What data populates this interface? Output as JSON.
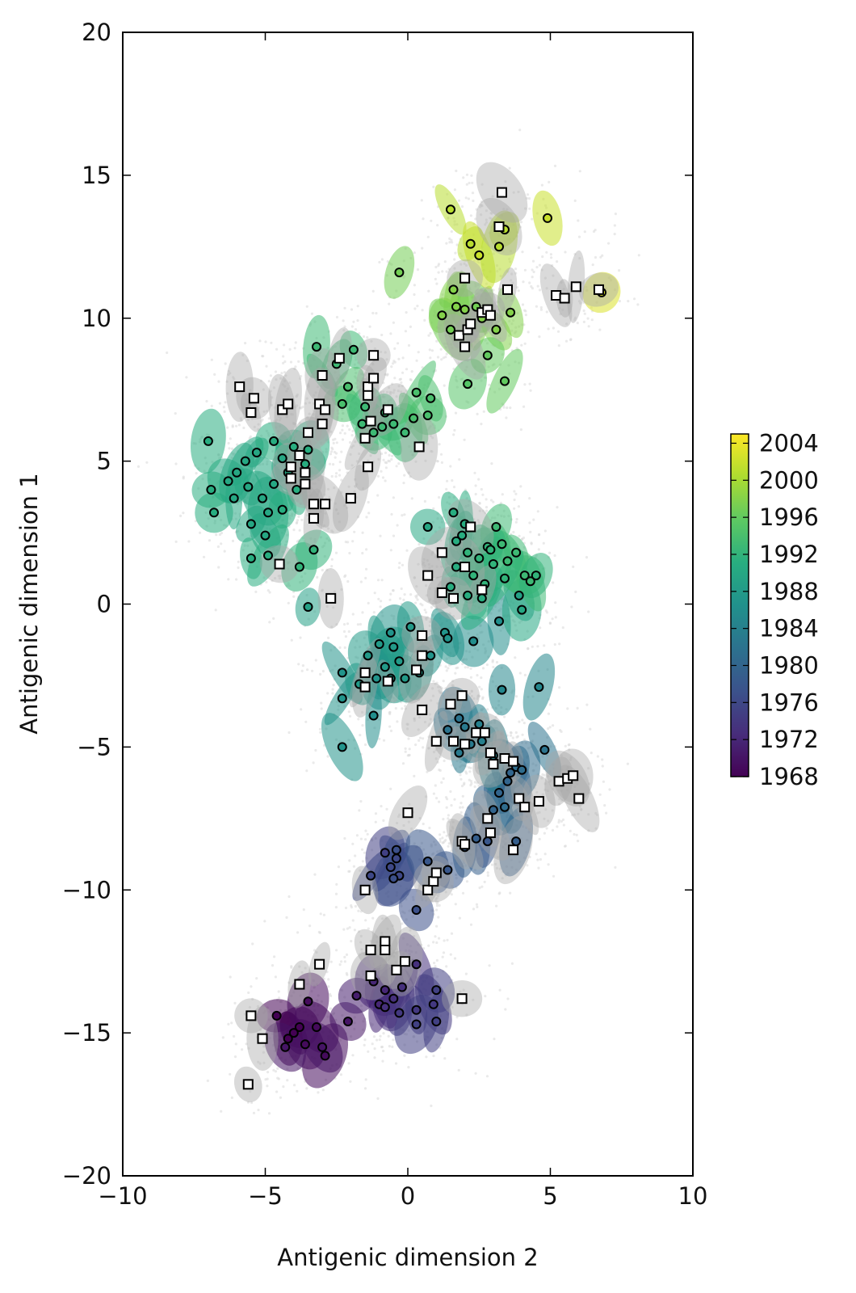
{
  "chart_data": {
    "type": "scatter",
    "xlabel": "Antigenic dimension 2",
    "ylabel": "Antigenic dimension 1",
    "xlim": [
      -10,
      10
    ],
    "ylim": [
      -20,
      20
    ],
    "x_ticks": [
      -10,
      -5,
      0,
      5,
      10
    ],
    "y_ticks": [
      -20,
      -15,
      -10,
      -5,
      0,
      5,
      10,
      15,
      20
    ],
    "x_tick_labels": [
      "−10",
      "−5",
      "0",
      "5",
      "10"
    ],
    "y_tick_labels": [
      "−20",
      "−15",
      "−10",
      "−5",
      "0",
      "5",
      "10",
      "15",
      "20"
    ],
    "grid": false,
    "colormap": "viridis",
    "colorbar": {
      "min": 1968,
      "max": 2005,
      "ticks": [
        1968,
        1972,
        1976,
        1980,
        1984,
        1988,
        1992,
        1996,
        2000,
        2004
      ],
      "labels": [
        "1968",
        "1972",
        "1976",
        "1980",
        "1984",
        "1988",
        "1992",
        "1996",
        "2000",
        "2004"
      ]
    },
    "colors": {
      "background_samples": "#d9d9d9",
      "grey_ellipses": "#a8a8a8",
      "point_stroke": "#000000",
      "serum_fill": "#ffffff"
    },
    "legend_items": [],
    "viruses": [
      {
        "x": -4.0,
        "y": -15.0,
        "year": 1968
      },
      {
        "x": -3.8,
        "y": -14.8,
        "year": 1968
      },
      {
        "x": -4.2,
        "y": -15.2,
        "year": 1968
      },
      {
        "x": -4.6,
        "y": -14.4,
        "year": 1968
      },
      {
        "x": -3.6,
        "y": -15.4,
        "year": 1969
      },
      {
        "x": -3.2,
        "y": -14.8,
        "year": 1969
      },
      {
        "x": -2.9,
        "y": -15.8,
        "year": 1969
      },
      {
        "x": -3.5,
        "y": -13.9,
        "year": 1969
      },
      {
        "x": -2.1,
        "y": -14.6,
        "year": 1970
      },
      {
        "x": -4.3,
        "y": -15.5,
        "year": 1970
      },
      {
        "x": -3.0,
        "y": -15.5,
        "year": 1970
      },
      {
        "x": -1.8,
        "y": -13.7,
        "year": 1971
      },
      {
        "x": -1.2,
        "y": -13.2,
        "year": 1972
      },
      {
        "x": -0.8,
        "y": -13.5,
        "year": 1972
      },
      {
        "x": -0.5,
        "y": -13.8,
        "year": 1973
      },
      {
        "x": -0.2,
        "y": -13.4,
        "year": 1973
      },
      {
        "x": 0.3,
        "y": -12.6,
        "year": 1973
      },
      {
        "x": -1.0,
        "y": -14.0,
        "year": 1972
      },
      {
        "x": -0.3,
        "y": -14.3,
        "year": 1974
      },
      {
        "x": 0.3,
        "y": -14.2,
        "year": 1974
      },
      {
        "x": 0.9,
        "y": -14.0,
        "year": 1974
      },
      {
        "x": 1.0,
        "y": -14.6,
        "year": 1975
      },
      {
        "x": 0.3,
        "y": -14.7,
        "year": 1975
      },
      {
        "x": -0.8,
        "y": -14.1,
        "year": 1973
      },
      {
        "x": 1.0,
        "y": -13.5,
        "year": 1975
      },
      {
        "x": -0.8,
        "y": -8.7,
        "year": 1975
      },
      {
        "x": -0.6,
        "y": -9.2,
        "year": 1976
      },
      {
        "x": -0.4,
        "y": -8.9,
        "year": 1976
      },
      {
        "x": -0.3,
        "y": -9.5,
        "year": 1976
      },
      {
        "x": -0.5,
        "y": -9.6,
        "year": 1977
      },
      {
        "x": -0.4,
        "y": -8.6,
        "year": 1977
      },
      {
        "x": -1.3,
        "y": -9.5,
        "year": 1976
      },
      {
        "x": 0.3,
        "y": -10.7,
        "year": 1977
      },
      {
        "x": 0.7,
        "y": -9.0,
        "year": 1978
      },
      {
        "x": 1.4,
        "y": -9.3,
        "year": 1978
      },
      {
        "x": 2.0,
        "y": -8.5,
        "year": 1979
      },
      {
        "x": 2.4,
        "y": -8.2,
        "year": 1979
      },
      {
        "x": 3.8,
        "y": -8.3,
        "year": 1979
      },
      {
        "x": 2.8,
        "y": -8.3,
        "year": 1978
      },
      {
        "x": 3.0,
        "y": -7.2,
        "year": 1980
      },
      {
        "x": 3.2,
        "y": -6.6,
        "year": 1980
      },
      {
        "x": 3.5,
        "y": -6.2,
        "year": 1980
      },
      {
        "x": 3.8,
        "y": -5.7,
        "year": 1981
      },
      {
        "x": 4.0,
        "y": -5.8,
        "year": 1981
      },
      {
        "x": 4.8,
        "y": -5.1,
        "year": 1982
      },
      {
        "x": 3.4,
        "y": -7.1,
        "year": 1981
      },
      {
        "x": 3.6,
        "y": -5.9,
        "year": 1980
      },
      {
        "x": 1.8,
        "y": -4.0,
        "year": 1982
      },
      {
        "x": 1.4,
        "y": -4.4,
        "year": 1982
      },
      {
        "x": 2.0,
        "y": -4.3,
        "year": 1983
      },
      {
        "x": 2.2,
        "y": -4.9,
        "year": 1983
      },
      {
        "x": 1.8,
        "y": -5.2,
        "year": 1983
      },
      {
        "x": 2.6,
        "y": -4.8,
        "year": 1984
      },
      {
        "x": 2.5,
        "y": -4.2,
        "year": 1984
      },
      {
        "x": 3.3,
        "y": -3.0,
        "year": 1985
      },
      {
        "x": 4.6,
        "y": -2.9,
        "year": 1985
      },
      {
        "x": 3.0,
        "y": -5.3,
        "year": 1984
      },
      {
        "x": 2.3,
        "y": -1.3,
        "year": 1986
      },
      {
        "x": 3.2,
        "y": -0.6,
        "year": 1986
      },
      {
        "x": 1.3,
        "y": -1.0,
        "year": 1987
      },
      {
        "x": 1.4,
        "y": -1.2,
        "year": 1987
      },
      {
        "x": -0.6,
        "y": -1.0,
        "year": 1987
      },
      {
        "x": -0.5,
        "y": -1.5,
        "year": 1988
      },
      {
        "x": -0.3,
        "y": -2.0,
        "year": 1988
      },
      {
        "x": -1.0,
        "y": -1.4,
        "year": 1988
      },
      {
        "x": -1.4,
        "y": -1.8,
        "year": 1988
      },
      {
        "x": -0.8,
        "y": -2.2,
        "year": 1988
      },
      {
        "x": -0.6,
        "y": -2.6,
        "year": 1988
      },
      {
        "x": -0.1,
        "y": -2.6,
        "year": 1988
      },
      {
        "x": 0.4,
        "y": -2.4,
        "year": 1988
      },
      {
        "x": 0.8,
        "y": -1.8,
        "year": 1987
      },
      {
        "x": -1.1,
        "y": -2.6,
        "year": 1987
      },
      {
        "x": -2.3,
        "y": -2.4,
        "year": 1987
      },
      {
        "x": -2.3,
        "y": -3.3,
        "year": 1987
      },
      {
        "x": -1.2,
        "y": -3.9,
        "year": 1986
      },
      {
        "x": -2.3,
        "y": -5.0,
        "year": 1987
      },
      {
        "x": -1.7,
        "y": -2.8,
        "year": 1988
      },
      {
        "x": 0.1,
        "y": -0.8,
        "year": 1988
      },
      {
        "x": 3.9,
        "y": 0.3,
        "year": 1989
      },
      {
        "x": 4.0,
        "y": -0.2,
        "year": 1990
      },
      {
        "x": -3.5,
        "y": -0.1,
        "year": 1989
      },
      {
        "x": 0.7,
        "y": 2.7,
        "year": 1990
      },
      {
        "x": 1.6,
        "y": 3.2,
        "year": 1991
      },
      {
        "x": 2.0,
        "y": 2.8,
        "year": 1991
      },
      {
        "x": 1.7,
        "y": 2.2,
        "year": 1991
      },
      {
        "x": 2.1,
        "y": 1.8,
        "year": 1992
      },
      {
        "x": 2.5,
        "y": 1.6,
        "year": 1992
      },
      {
        "x": 2.8,
        "y": 2.0,
        "year": 1992
      },
      {
        "x": 3.1,
        "y": 2.7,
        "year": 1993
      },
      {
        "x": 3.3,
        "y": 2.1,
        "year": 1993
      },
      {
        "x": 2.3,
        "y": 1.0,
        "year": 1992
      },
      {
        "x": 2.7,
        "y": 0.7,
        "year": 1992
      },
      {
        "x": 3.0,
        "y": 1.4,
        "year": 1992
      },
      {
        "x": 1.7,
        "y": 1.3,
        "year": 1991
      },
      {
        "x": 1.5,
        "y": 0.6,
        "year": 1991
      },
      {
        "x": 3.5,
        "y": 1.5,
        "year": 1993
      },
      {
        "x": 3.8,
        "y": 1.8,
        "year": 1993
      },
      {
        "x": 4.1,
        "y": 1.0,
        "year": 1993
      },
      {
        "x": 4.3,
        "y": 0.8,
        "year": 1993
      },
      {
        "x": 4.5,
        "y": 1.0,
        "year": 1992
      },
      {
        "x": 3.4,
        "y": 0.9,
        "year": 1992
      },
      {
        "x": 2.1,
        "y": 0.3,
        "year": 1991
      },
      {
        "x": 2.6,
        "y": 0.2,
        "year": 1991
      },
      {
        "x": 2.9,
        "y": 1.9,
        "year": 1992
      },
      {
        "x": 1.9,
        "y": 2.4,
        "year": 1991
      },
      {
        "x": -4.4,
        "y": 5.1,
        "year": 1990
      },
      {
        "x": -4.0,
        "y": 5.5,
        "year": 1991
      },
      {
        "x": -3.6,
        "y": 4.9,
        "year": 1991
      },
      {
        "x": -4.2,
        "y": 4.6,
        "year": 1990
      },
      {
        "x": -4.7,
        "y": 4.2,
        "year": 1990
      },
      {
        "x": -5.1,
        "y": 3.7,
        "year": 1990
      },
      {
        "x": -5.6,
        "y": 4.1,
        "year": 1990
      },
      {
        "x": -4.9,
        "y": 3.2,
        "year": 1990
      },
      {
        "x": -4.4,
        "y": 3.3,
        "year": 1991
      },
      {
        "x": -3.9,
        "y": 4.0,
        "year": 1991
      },
      {
        "x": -3.5,
        "y": 5.4,
        "year": 1991
      },
      {
        "x": -5.3,
        "y": 5.3,
        "year": 1990
      },
      {
        "x": -5.7,
        "y": 5.0,
        "year": 1990
      },
      {
        "x": -6.3,
        "y": 4.3,
        "year": 1990
      },
      {
        "x": -6.9,
        "y": 4.0,
        "year": 1991
      },
      {
        "x": -7.0,
        "y": 5.7,
        "year": 1991
      },
      {
        "x": -6.8,
        "y": 3.2,
        "year": 1991
      },
      {
        "x": -5.5,
        "y": 2.8,
        "year": 1990
      },
      {
        "x": -5.0,
        "y": 2.4,
        "year": 1990
      },
      {
        "x": -5.5,
        "y": 1.6,
        "year": 1991
      },
      {
        "x": -4.9,
        "y": 1.7,
        "year": 1991
      },
      {
        "x": -3.3,
        "y": 1.9,
        "year": 1992
      },
      {
        "x": -3.8,
        "y": 1.3,
        "year": 1992
      },
      {
        "x": -6.0,
        "y": 4.6,
        "year": 1990
      },
      {
        "x": -6.1,
        "y": 3.7,
        "year": 1990
      },
      {
        "x": -4.7,
        "y": 5.7,
        "year": 1991
      },
      {
        "x": -3.2,
        "y": 9.0,
        "year": 1993
      },
      {
        "x": -2.5,
        "y": 8.4,
        "year": 1993
      },
      {
        "x": -1.9,
        "y": 8.9,
        "year": 1993
      },
      {
        "x": -2.1,
        "y": 7.6,
        "year": 1994
      },
      {
        "x": -2.3,
        "y": 7.0,
        "year": 1994
      },
      {
        "x": -1.6,
        "y": 6.3,
        "year": 1993
      },
      {
        "x": -1.5,
        "y": 6.9,
        "year": 1993
      },
      {
        "x": -0.8,
        "y": 6.7,
        "year": 1993
      },
      {
        "x": -0.5,
        "y": 6.3,
        "year": 1993
      },
      {
        "x": -0.1,
        "y": 6.0,
        "year": 1993
      },
      {
        "x": 0.2,
        "y": 6.5,
        "year": 1994
      },
      {
        "x": 0.3,
        "y": 7.4,
        "year": 1994
      },
      {
        "x": 0.8,
        "y": 7.2,
        "year": 1994
      },
      {
        "x": 0.7,
        "y": 6.6,
        "year": 1994
      },
      {
        "x": -1.2,
        "y": 6.0,
        "year": 1993
      },
      {
        "x": -0.9,
        "y": 6.2,
        "year": 1993
      },
      {
        "x": -3.0,
        "y": 8.0,
        "year": 1993
      },
      {
        "x": -0.3,
        "y": 11.6,
        "year": 1997
      },
      {
        "x": 1.6,
        "y": 11.0,
        "year": 1998
      },
      {
        "x": 1.2,
        "y": 10.1,
        "year": 1998
      },
      {
        "x": 1.7,
        "y": 10.4,
        "year": 1998
      },
      {
        "x": 2.0,
        "y": 10.3,
        "year": 1998
      },
      {
        "x": 2.6,
        "y": 10.0,
        "year": 1998
      },
      {
        "x": 3.1,
        "y": 9.6,
        "year": 1998
      },
      {
        "x": 3.6,
        "y": 10.2,
        "year": 1998
      },
      {
        "x": 2.4,
        "y": 10.4,
        "year": 1997
      },
      {
        "x": 1.5,
        "y": 9.6,
        "year": 1997
      },
      {
        "x": 2.8,
        "y": 8.7,
        "year": 1996
      },
      {
        "x": 3.4,
        "y": 7.8,
        "year": 1996
      },
      {
        "x": 2.1,
        "y": 7.7,
        "year": 1995
      },
      {
        "x": 1.5,
        "y": 13.8,
        "year": 2001
      },
      {
        "x": 2.2,
        "y": 12.6,
        "year": 2001
      },
      {
        "x": 2.5,
        "y": 12.2,
        "year": 2002
      },
      {
        "x": 3.2,
        "y": 12.5,
        "year": 2001
      },
      {
        "x": 3.4,
        "y": 13.1,
        "year": 2001
      },
      {
        "x": 4.9,
        "y": 13.5,
        "year": 2002
      },
      {
        "x": 6.8,
        "y": 10.9,
        "year": 2003
      }
    ],
    "sera": [
      {
        "x": -5.6,
        "y": -16.8
      },
      {
        "x": -5.5,
        "y": -14.4
      },
      {
        "x": -5.1,
        "y": -15.2
      },
      {
        "x": -3.8,
        "y": -13.3
      },
      {
        "x": -3.1,
        "y": -12.6
      },
      {
        "x": -1.3,
        "y": -13.0
      },
      {
        "x": -1.3,
        "y": -12.1
      },
      {
        "x": -0.8,
        "y": -11.8
      },
      {
        "x": -0.8,
        "y": -12.1
      },
      {
        "x": -0.4,
        "y": -12.8
      },
      {
        "x": -0.1,
        "y": -12.5
      },
      {
        "x": 1.9,
        "y": -13.8
      },
      {
        "x": -1.5,
        "y": -10.0
      },
      {
        "x": 0.7,
        "y": -10.0
      },
      {
        "x": 0.9,
        "y": -9.7
      },
      {
        "x": 1.0,
        "y": -9.4
      },
      {
        "x": 0.0,
        "y": -7.3
      },
      {
        "x": 1.9,
        "y": -8.3
      },
      {
        "x": 2.0,
        "y": -8.4
      },
      {
        "x": 2.8,
        "y": -7.5
      },
      {
        "x": 2.9,
        "y": -8.0
      },
      {
        "x": 3.7,
        "y": -8.6
      },
      {
        "x": 3.9,
        "y": -6.8
      },
      {
        "x": 4.1,
        "y": -7.1
      },
      {
        "x": 4.6,
        "y": -6.9
      },
      {
        "x": 5.3,
        "y": -6.2
      },
      {
        "x": 5.6,
        "y": -6.1
      },
      {
        "x": 5.8,
        "y": -6.0
      },
      {
        "x": 6.0,
        "y": -6.8
      },
      {
        "x": 3.4,
        "y": -5.4
      },
      {
        "x": 3.7,
        "y": -5.5
      },
      {
        "x": 2.9,
        "y": -5.2
      },
      {
        "x": 3.0,
        "y": -5.6
      },
      {
        "x": 1.0,
        "y": -4.8
      },
      {
        "x": 1.6,
        "y": -4.8
      },
      {
        "x": 2.0,
        "y": -4.9
      },
      {
        "x": 2.4,
        "y": -4.5
      },
      {
        "x": 2.7,
        "y": -4.5
      },
      {
        "x": 1.5,
        "y": -3.5
      },
      {
        "x": 1.9,
        "y": -3.2
      },
      {
        "x": -1.5,
        "y": -2.4
      },
      {
        "x": -1.5,
        "y": -2.9
      },
      {
        "x": -0.7,
        "y": -2.7
      },
      {
        "x": 0.3,
        "y": -2.3
      },
      {
        "x": 0.5,
        "y": -1.1
      },
      {
        "x": 0.5,
        "y": -1.8
      },
      {
        "x": 0.5,
        "y": -3.7
      },
      {
        "x": -2.7,
        "y": 0.2
      },
      {
        "x": 0.7,
        "y": 1.0
      },
      {
        "x": 1.2,
        "y": 1.8
      },
      {
        "x": 1.2,
        "y": 0.4
      },
      {
        "x": 1.6,
        "y": 0.2
      },
      {
        "x": 2.0,
        "y": 1.3
      },
      {
        "x": 2.2,
        "y": 2.7
      },
      {
        "x": 2.6,
        "y": 0.5
      },
      {
        "x": -4.5,
        "y": 1.4
      },
      {
        "x": -4.1,
        "y": 4.8
      },
      {
        "x": -4.1,
        "y": 4.4
      },
      {
        "x": -3.8,
        "y": 5.2
      },
      {
        "x": -3.6,
        "y": 4.6
      },
      {
        "x": -3.6,
        "y": 4.2
      },
      {
        "x": -3.5,
        "y": 6.0
      },
      {
        "x": -3.3,
        "y": 3.5
      },
      {
        "x": -3.3,
        "y": 3.0
      },
      {
        "x": -2.9,
        "y": 3.5
      },
      {
        "x": -2.0,
        "y": 3.7
      },
      {
        "x": -1.4,
        "y": 4.8
      },
      {
        "x": -5.9,
        "y": 7.6
      },
      {
        "x": -5.4,
        "y": 7.2
      },
      {
        "x": -5.5,
        "y": 6.7
      },
      {
        "x": -4.4,
        "y": 6.8
      },
      {
        "x": -4.2,
        "y": 7.0
      },
      {
        "x": -3.1,
        "y": 7.0
      },
      {
        "x": -2.9,
        "y": 6.8
      },
      {
        "x": -3.0,
        "y": 6.3
      },
      {
        "x": -3.0,
        "y": 8.0
      },
      {
        "x": -2.4,
        "y": 8.6
      },
      {
        "x": -1.2,
        "y": 8.7
      },
      {
        "x": -1.4,
        "y": 7.6
      },
      {
        "x": -1.2,
        "y": 7.9
      },
      {
        "x": -1.4,
        "y": 7.3
      },
      {
        "x": -1.3,
        "y": 6.4
      },
      {
        "x": -1.5,
        "y": 5.8
      },
      {
        "x": -0.7,
        "y": 6.8
      },
      {
        "x": 0.4,
        "y": 5.5
      },
      {
        "x": 2.0,
        "y": 11.4
      },
      {
        "x": 1.8,
        "y": 9.4
      },
      {
        "x": 2.0,
        "y": 9.0
      },
      {
        "x": 2.1,
        "y": 9.6
      },
      {
        "x": 2.2,
        "y": 9.8
      },
      {
        "x": 2.6,
        "y": 10.2
      },
      {
        "x": 2.8,
        "y": 10.3
      },
      {
        "x": 2.9,
        "y": 10.1
      },
      {
        "x": 3.5,
        "y": 11.0
      },
      {
        "x": 3.2,
        "y": 13.2
      },
      {
        "x": 3.3,
        "y": 14.4
      },
      {
        "x": 5.2,
        "y": 10.8
      },
      {
        "x": 5.5,
        "y": 10.7
      },
      {
        "x": 5.9,
        "y": 11.1
      },
      {
        "x": 6.7,
        "y": 11.0
      }
    ]
  }
}
